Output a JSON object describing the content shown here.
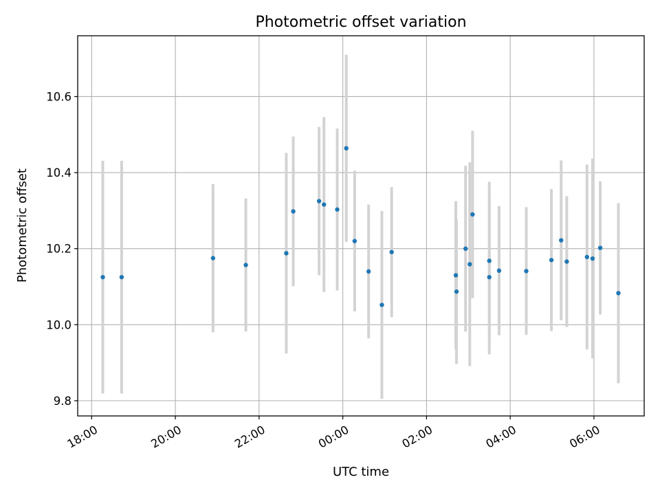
{
  "chart_data": {
    "type": "scatter",
    "title": "Photometric offset variation",
    "xlabel": "UTC time",
    "ylabel": "Photometric offset",
    "x_is_time": true,
    "xlim": [
      "17:40",
      "07:12"
    ],
    "ylim": [
      9.76,
      10.76
    ],
    "grid": true,
    "x_ticks": [
      "18:00",
      "20:00",
      "22:00",
      "00:00",
      "02:00",
      "04:00",
      "06:00"
    ],
    "y_ticks": [
      "9.8",
      "10.0",
      "10.2",
      "10.4",
      "10.6"
    ],
    "marker_color": "#1f77b4",
    "errorbar_color": "#d3d3d3",
    "points": [
      {
        "t": "18:16",
        "y": 10.125,
        "err": 0.306
      },
      {
        "t": "18:43",
        "y": 10.125,
        "err": 0.306
      },
      {
        "t": "20:54",
        "y": 10.175,
        "err": 0.195
      },
      {
        "t": "21:41",
        "y": 10.157,
        "err": 0.175
      },
      {
        "t": "22:39",
        "y": 10.188,
        "err": 0.264
      },
      {
        "t": "22:49",
        "y": 10.298,
        "err": 0.197
      },
      {
        "t": "23:26",
        "y": 10.325,
        "err": 0.195
      },
      {
        "t": "23:33",
        "y": 10.316,
        "err": 0.23
      },
      {
        "t": "23:52",
        "y": 10.303,
        "err": 0.213
      },
      {
        "t": "00:05",
        "y": 10.464,
        "err": 0.246
      },
      {
        "t": "00:17",
        "y": 10.22,
        "err": 0.185
      },
      {
        "t": "00:37",
        "y": 10.14,
        "err": 0.176
      },
      {
        "t": "00:56",
        "y": 10.052,
        "err": 0.247
      },
      {
        "t": "01:10",
        "y": 10.191,
        "err": 0.171
      },
      {
        "t": "02:42",
        "y": 10.13,
        "err": 0.195
      },
      {
        "t": "02:43",
        "y": 10.087,
        "err": 0.19
      },
      {
        "t": "02:56",
        "y": 10.2,
        "err": 0.218
      },
      {
        "t": "03:02",
        "y": 10.159,
        "err": 0.268
      },
      {
        "t": "03:06",
        "y": 10.29,
        "err": 0.22
      },
      {
        "t": "03:30",
        "y": 10.168,
        "err": 0.208
      },
      {
        "t": "03:30",
        "y": 10.125,
        "err": 0.203
      },
      {
        "t": "03:44",
        "y": 10.142,
        "err": 0.17
      },
      {
        "t": "04:23",
        "y": 10.141,
        "err": 0.168
      },
      {
        "t": "04:59",
        "y": 10.17,
        "err": 0.187
      },
      {
        "t": "05:13",
        "y": 10.222,
        "err": 0.21
      },
      {
        "t": "05:21",
        "y": 10.166,
        "err": 0.172
      },
      {
        "t": "05:50",
        "y": 10.178,
        "err": 0.243
      },
      {
        "t": "05:58",
        "y": 10.174,
        "err": 0.263
      },
      {
        "t": "06:09",
        "y": 10.202,
        "err": 0.175
      },
      {
        "t": "06:35",
        "y": 10.083,
        "err": 0.237
      }
    ]
  }
}
